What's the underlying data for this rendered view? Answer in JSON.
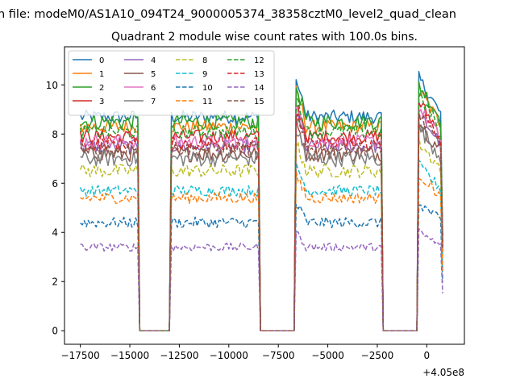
{
  "figure": {
    "suptitle": "n file: modeM0/AS1A10_094T24_9000005374_38358cztM0_level2_quad_clean",
    "title": "Quadrant 2 module wise count rates with 100.0s bins.",
    "x_offset_label": "+4.05e8"
  },
  "chart_data": {
    "type": "line",
    "title": "Quadrant 2 module wise count rates with 100.0s bins.",
    "xlabel": "",
    "ylabel": "",
    "x_offset": 405000000,
    "xlim": [
      -18300,
      1900
    ],
    "ylim": [
      -0.55,
      11.55
    ],
    "x_ticks": [
      -17500,
      -15000,
      -12500,
      -10000,
      -7500,
      -5000,
      -2500,
      0
    ],
    "x_tick_labels": [
      "−17500",
      "−15000",
      "−12500",
      "−10000",
      "−7500",
      "−5000",
      "−2500",
      "0"
    ],
    "y_ticks": [
      0,
      2,
      4,
      6,
      8,
      10
    ],
    "y_tick_labels": [
      "0",
      "2",
      "4",
      "6",
      "8",
      "10"
    ],
    "grid": false,
    "legend_position": "upper-left",
    "legend_columns": 4,
    "x_start": -17500,
    "x_step": 100,
    "segments": [
      {
        "start": -17500,
        "end": -14600,
        "state": "on"
      },
      {
        "start": -14500,
        "end": -13000,
        "state": "gap"
      },
      {
        "start": -12900,
        "end": -8500,
        "state": "on"
      },
      {
        "start": -8400,
        "end": -6700,
        "state": "gap"
      },
      {
        "start": -6600,
        "end": -2300,
        "state": "on"
      },
      {
        "start": -2200,
        "end": -500,
        "state": "gap"
      },
      {
        "start": -400,
        "end": 800,
        "state": "on"
      }
    ],
    "series": [
      {
        "name": "0",
        "color": "#1f77b4",
        "dash": "solid",
        "mean_level": 8.7,
        "noise": 0.25
      },
      {
        "name": "1",
        "color": "#ff7f0e",
        "dash": "solid",
        "mean_level": 8.3,
        "noise": 0.25
      },
      {
        "name": "2",
        "color": "#2ca02c",
        "dash": "solid",
        "mean_level": 8.5,
        "noise": 0.3
      },
      {
        "name": "3",
        "color": "#d62728",
        "dash": "solid",
        "mean_level": 7.9,
        "noise": 0.25
      },
      {
        "name": "4",
        "color": "#9467bd",
        "dash": "solid",
        "mean_level": 7.5,
        "noise": 0.25
      },
      {
        "name": "5",
        "color": "#8c564b",
        "dash": "solid",
        "mean_level": 7.2,
        "noise": 0.3
      },
      {
        "name": "6",
        "color": "#e377c2",
        "dash": "solid",
        "mean_level": 7.7,
        "noise": 0.25
      },
      {
        "name": "7",
        "color": "#7f7f7f",
        "dash": "solid",
        "mean_level": 7.0,
        "noise": 0.3
      },
      {
        "name": "8",
        "color": "#bcbd22",
        "dash": "dashed",
        "mean_level": 6.5,
        "noise": 0.25
      },
      {
        "name": "9",
        "color": "#17becf",
        "dash": "dashed",
        "mean_level": 5.7,
        "noise": 0.2
      },
      {
        "name": "10",
        "color": "#1f77b4",
        "dash": "dashed",
        "mean_level": 4.4,
        "noise": 0.2
      },
      {
        "name": "11",
        "color": "#ff7f0e",
        "dash": "dashed",
        "mean_level": 5.4,
        "noise": 0.2
      },
      {
        "name": "12",
        "color": "#2ca02c",
        "dash": "dashed",
        "mean_level": 8.1,
        "noise": 0.25
      },
      {
        "name": "13",
        "color": "#d62728",
        "dash": "dashed",
        "mean_level": 7.6,
        "noise": 0.25
      },
      {
        "name": "14",
        "color": "#9467bd",
        "dash": "dashed",
        "mean_level": 3.4,
        "noise": 0.15
      },
      {
        "name": "15",
        "color": "#8c564b",
        "dash": "dashed",
        "mean_level": 7.4,
        "noise": 0.25
      }
    ]
  }
}
